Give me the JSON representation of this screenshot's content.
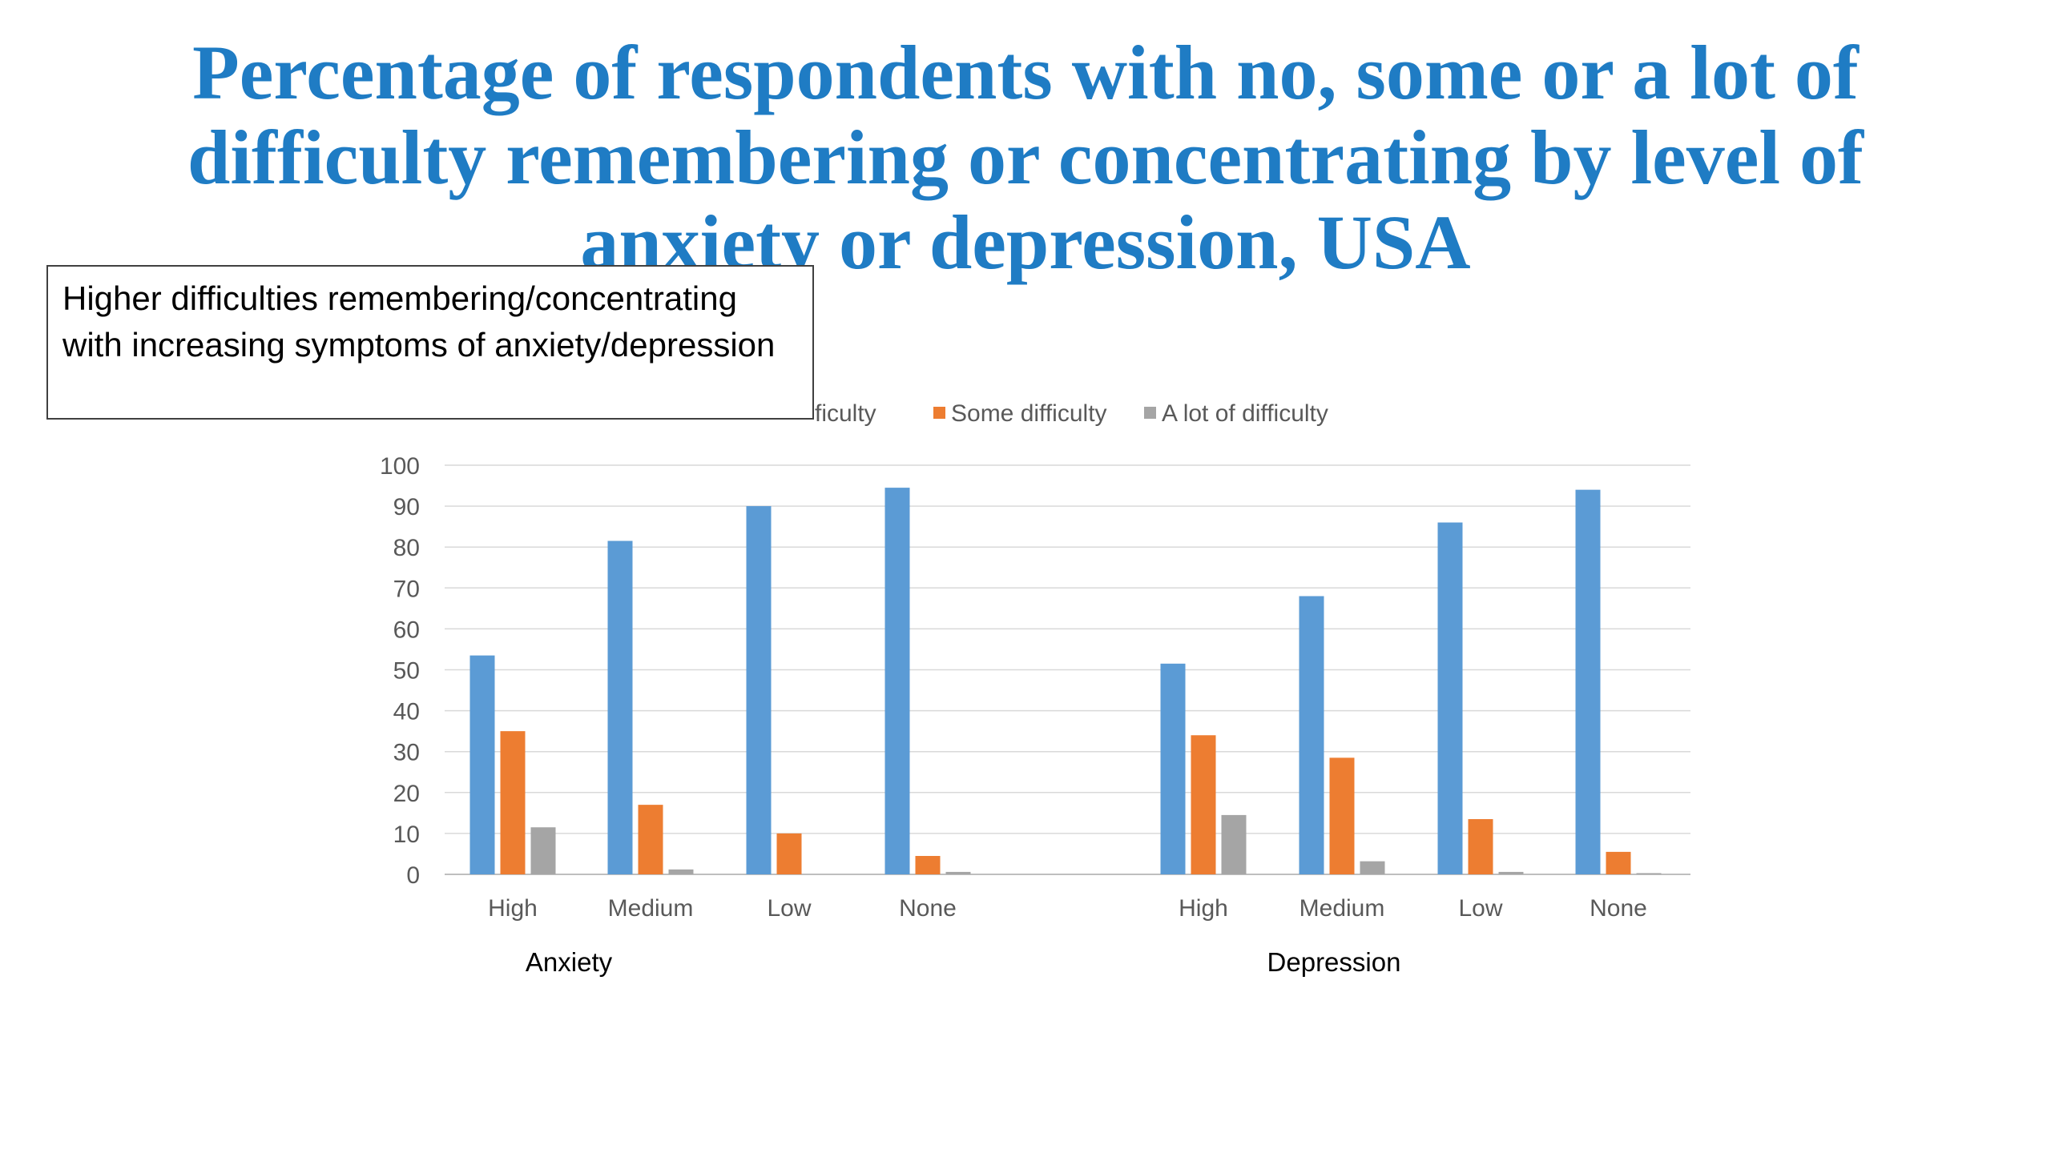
{
  "slide": {
    "title": "Percentage of respondents with no, some or a lot of difficulty remembering or concentrating by level of anxiety or depression, USA"
  },
  "callout": {
    "text": "Higher difficulties remembering/concentrating with increasing symptoms of anxiety/depression"
  },
  "colors": {
    "title": "#1f7cc4",
    "no_difficulty": "#5b9bd5",
    "some_difficulty": "#ed7d31",
    "a_lot_of_difficulty": "#a5a5a5",
    "gridline": "#d9d9d9",
    "tick_label": "#595959"
  },
  "chart_data": {
    "type": "bar",
    "title": "",
    "xlabel": "",
    "ylabel": "",
    "ylim": [
      0,
      100
    ],
    "yticks": [
      0,
      10,
      20,
      30,
      40,
      50,
      60,
      70,
      80,
      90,
      100
    ],
    "grid": true,
    "legend_position": "top",
    "legend_visible": [
      "ficulty",
      "Some difficulty",
      "A lot of difficulty"
    ],
    "groups": [
      {
        "name": "Anxiety",
        "categories": [
          "High",
          "Medium",
          "Low",
          "None"
        ]
      },
      {
        "name": "Depression",
        "categories": [
          "High",
          "Medium",
          "Low",
          "None"
        ]
      }
    ],
    "series": [
      {
        "name": "No difficulty",
        "color": "#5b9bd5",
        "values": [
          53.5,
          81.5,
          90,
          94.5,
          51.5,
          68,
          86,
          94
        ]
      },
      {
        "name": "Some difficulty",
        "color": "#ed7d31",
        "values": [
          35,
          17,
          10,
          4.5,
          34,
          28.5,
          13.5,
          5.5
        ]
      },
      {
        "name": "A lot of difficulty",
        "color": "#a5a5a5",
        "values": [
          11.5,
          1.2,
          0,
          0.6,
          14.5,
          3.2,
          0.6,
          0.3
        ]
      }
    ]
  }
}
